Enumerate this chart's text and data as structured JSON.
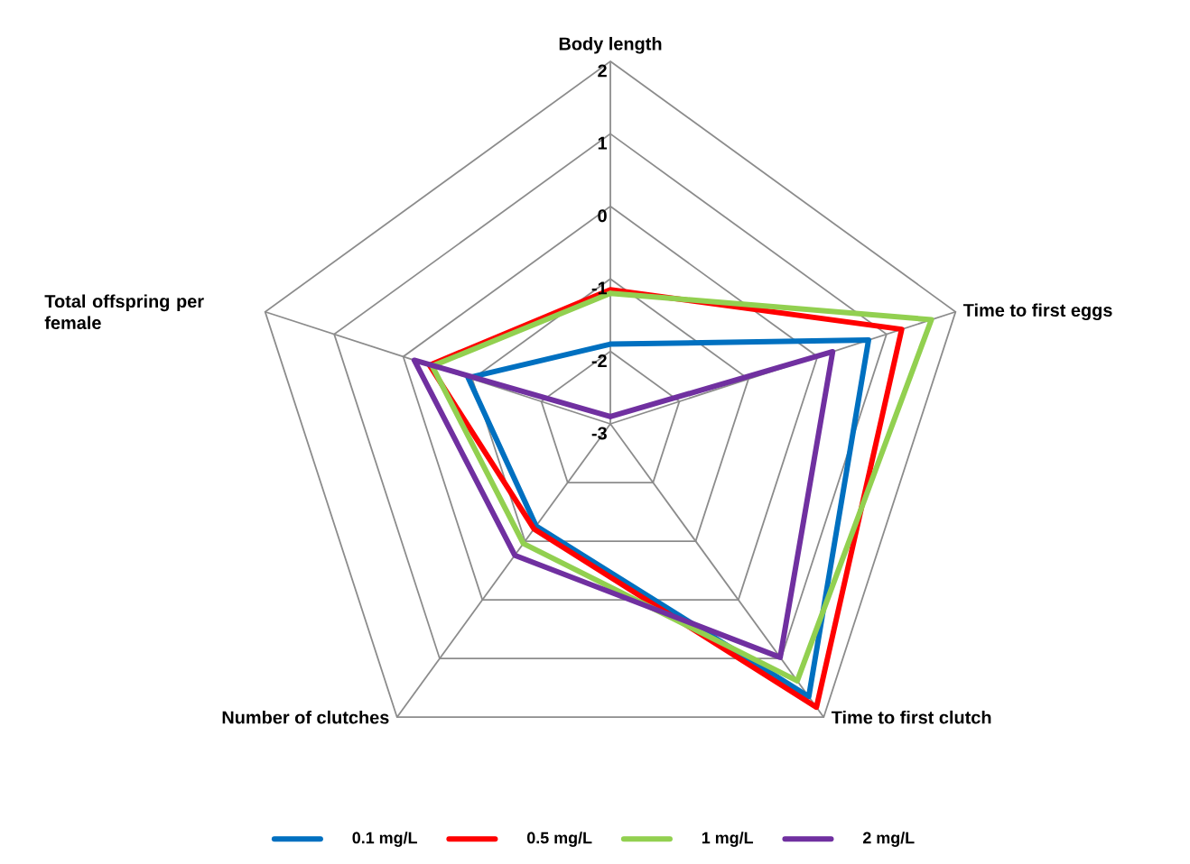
{
  "chart_data": {
    "type": "radar",
    "categories": [
      "Body length",
      "Time to first eggs",
      "Time to first clutch",
      "Number of clutches",
      "Total offspring per female"
    ],
    "series": [
      {
        "name": "0.1 mg/L",
        "color": "#0070c0",
        "values": [
          -1.9,
          0.74,
          1.65,
          -1.26,
          -0.94
        ]
      },
      {
        "name": "0.5 mg/L",
        "color": "#ff0000",
        "values": [
          -1.15,
          1.22,
          1.83,
          -1.21,
          -0.38
        ]
      },
      {
        "name": "1 mg/L",
        "color": "#92d050",
        "values": [
          -1.2,
          1.65,
          1.38,
          -0.96,
          -0.42
        ]
      },
      {
        "name": "2 mg/L",
        "color": "#7030a0",
        "values": [
          -2.9,
          0.22,
          0.98,
          -0.76,
          -0.16
        ]
      }
    ],
    "ylim": [
      -3,
      2
    ],
    "yticks": [
      -3,
      -2,
      -1,
      0,
      1,
      2
    ],
    "grid": true,
    "legend": "bottom"
  }
}
